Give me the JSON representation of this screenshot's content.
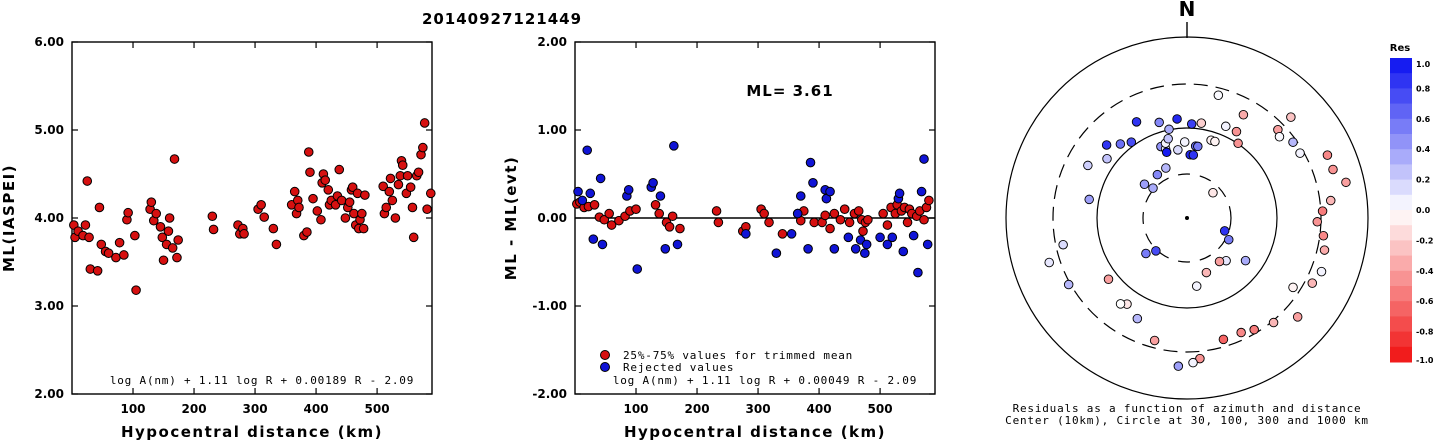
{
  "title": "20140927121449",
  "colors": {
    "red": "#d61010",
    "blue": "#1014d6",
    "res_pos": "#0a10f0",
    "res_neg": "#f01010"
  },
  "chart_data": [
    {
      "type": "scatter",
      "xlabel": "Hypocentral distance (km)",
      "ylabel": "ML(IASPEI)",
      "xlim": [
        0,
        590
      ],
      "ylim": [
        2.0,
        6.0
      ],
      "xticks": [
        "100",
        "200",
        "300",
        "400",
        "500"
      ],
      "yticks": [
        "2.00",
        "3.00",
        "4.00",
        "5.00",
        "6.00"
      ],
      "formula": "log A(nm) + 1.11 log R + 0.00189 R - 2.09",
      "points": [
        [
          3,
          3.92
        ],
        [
          5,
          3.78
        ],
        [
          10,
          3.85
        ],
        [
          18,
          3.8
        ],
        [
          22,
          3.92
        ],
        [
          25,
          4.42
        ],
        [
          28,
          3.78
        ],
        [
          30,
          3.42
        ],
        [
          42,
          3.4
        ],
        [
          45,
          4.12
        ],
        [
          48,
          3.7
        ],
        [
          55,
          3.62
        ],
        [
          60,
          3.6
        ],
        [
          72,
          3.55
        ],
        [
          78,
          3.72
        ],
        [
          85,
          3.58
        ],
        [
          90,
          3.98
        ],
        [
          92,
          4.06
        ],
        [
          103,
          3.8
        ],
        [
          105,
          3.18
        ],
        [
          128,
          4.1
        ],
        [
          130,
          4.18
        ],
        [
          134,
          3.97
        ],
        [
          138,
          4.05
        ],
        [
          145,
          3.9
        ],
        [
          148,
          3.78
        ],
        [
          150,
          3.52
        ],
        [
          155,
          3.7
        ],
        [
          158,
          3.85
        ],
        [
          160,
          4.0
        ],
        [
          165,
          3.66
        ],
        [
          168,
          4.67
        ],
        [
          172,
          3.55
        ],
        [
          174,
          3.75
        ],
        [
          230,
          4.02
        ],
        [
          232,
          3.87
        ],
        [
          272,
          3.92
        ],
        [
          275,
          3.82
        ],
        [
          280,
          3.88
        ],
        [
          282,
          3.82
        ],
        [
          305,
          4.1
        ],
        [
          310,
          4.15
        ],
        [
          315,
          4.01
        ],
        [
          330,
          3.88
        ],
        [
          335,
          3.7
        ],
        [
          360,
          4.15
        ],
        [
          365,
          4.3
        ],
        [
          368,
          4.05
        ],
        [
          370,
          4.2
        ],
        [
          372,
          4.12
        ],
        [
          380,
          3.8
        ],
        [
          385,
          3.84
        ],
        [
          388,
          4.75
        ],
        [
          390,
          4.52
        ],
        [
          395,
          4.22
        ],
        [
          402,
          4.08
        ],
        [
          408,
          3.98
        ],
        [
          410,
          4.4
        ],
        [
          412,
          4.5
        ],
        [
          415,
          4.43
        ],
        [
          420,
          4.32
        ],
        [
          422,
          4.15
        ],
        [
          425,
          4.2
        ],
        [
          432,
          4.15
        ],
        [
          435,
          4.25
        ],
        [
          438,
          4.55
        ],
        [
          442,
          4.2
        ],
        [
          448,
          4.0
        ],
        [
          452,
          4.12
        ],
        [
          455,
          4.18
        ],
        [
          458,
          4.32
        ],
        [
          460,
          4.35
        ],
        [
          462,
          4.05
        ],
        [
          465,
          3.92
        ],
        [
          468,
          4.28
        ],
        [
          470,
          3.88
        ],
        [
          472,
          3.98
        ],
        [
          475,
          4.05
        ],
        [
          478,
          3.88
        ],
        [
          480,
          4.26
        ],
        [
          510,
          4.36
        ],
        [
          512,
          4.05
        ],
        [
          515,
          4.12
        ],
        [
          520,
          4.3
        ],
        [
          522,
          4.45
        ],
        [
          525,
          4.2
        ],
        [
          530,
          4.0
        ],
        [
          535,
          4.38
        ],
        [
          538,
          4.48
        ],
        [
          540,
          4.65
        ],
        [
          542,
          4.6
        ],
        [
          548,
          4.28
        ],
        [
          550,
          4.48
        ],
        [
          555,
          4.35
        ],
        [
          558,
          4.12
        ],
        [
          560,
          3.78
        ],
        [
          565,
          4.48
        ],
        [
          568,
          4.52
        ],
        [
          572,
          4.72
        ],
        [
          575,
          4.8
        ],
        [
          578,
          5.08
        ],
        [
          582,
          4.1
        ],
        [
          588,
          4.28
        ]
      ]
    },
    {
      "type": "scatter",
      "xlabel": "Hypocentral distance (km)",
      "ylabel": "ML - ML(evt)",
      "xlim": [
        0,
        590
      ],
      "ylim": [
        -2.0,
        2.0
      ],
      "xticks": [
        "100",
        "200",
        "300",
        "400",
        "500"
      ],
      "yticks": [
        "-2.00",
        "-1.00",
        "0.00",
        "1.00",
        "2.00"
      ],
      "annotation": "ML= 3.61",
      "formula": "log A(nm) + 1.11 log R + 0.00049 R - 2.09",
      "legend": [
        {
          "label": "25%-75% values for trimmed mean",
          "color": "red"
        },
        {
          "label": "Rejected values",
          "color": "blue"
        }
      ],
      "series": [
        {
          "color": "red",
          "points": [
            [
              3,
              0.16
            ],
            [
              8,
              0.18
            ],
            [
              15,
              0.12
            ],
            [
              22,
              0.13
            ],
            [
              32,
              0.15
            ],
            [
              40,
              0.01
            ],
            [
              48,
              -0.02
            ],
            [
              56,
              0.05
            ],
            [
              60,
              -0.08
            ],
            [
              72,
              -0.03
            ],
            [
              82,
              0.02
            ],
            [
              90,
              0.08
            ],
            [
              100,
              0.1
            ],
            [
              132,
              0.15
            ],
            [
              138,
              0.05
            ],
            [
              150,
              -0.05
            ],
            [
              155,
              -0.1
            ],
            [
              160,
              0.02
            ],
            [
              172,
              -0.12
            ],
            [
              232,
              0.08
            ],
            [
              235,
              -0.05
            ],
            [
              275,
              -0.15
            ],
            [
              280,
              -0.1
            ],
            [
              305,
              0.1
            ],
            [
              310,
              0.05
            ],
            [
              318,
              -0.05
            ],
            [
              340,
              -0.18
            ],
            [
              365,
              0.05
            ],
            [
              370,
              -0.03
            ],
            [
              375,
              0.08
            ],
            [
              392,
              -0.05
            ],
            [
              405,
              -0.05
            ],
            [
              410,
              0.03
            ],
            [
              418,
              -0.12
            ],
            [
              425,
              0.05
            ],
            [
              435,
              -0.02
            ],
            [
              442,
              0.1
            ],
            [
              450,
              -0.05
            ],
            [
              458,
              0.05
            ],
            [
              465,
              0.08
            ],
            [
              470,
              -0.02
            ],
            [
              472,
              -0.15
            ],
            [
              476,
              -0.05
            ],
            [
              480,
              -0.02
            ],
            [
              505,
              0.05
            ],
            [
              512,
              -0.08
            ],
            [
              518,
              0.12
            ],
            [
              525,
              0.05
            ],
            [
              528,
              0.15
            ],
            [
              535,
              0.08
            ],
            [
              540,
              0.12
            ],
            [
              545,
              -0.05
            ],
            [
              548,
              0.1
            ],
            [
              552,
              0.05
            ],
            [
              560,
              0.02
            ],
            [
              565,
              0.08
            ],
            [
              572,
              -0.02
            ],
            [
              576,
              0.12
            ],
            [
              580,
              0.2
            ]
          ]
        },
        {
          "color": "blue",
          "points": [
            [
              5,
              0.3
            ],
            [
              12,
              0.2
            ],
            [
              20,
              0.77
            ],
            [
              25,
              0.28
            ],
            [
              30,
              -0.24
            ],
            [
              42,
              0.45
            ],
            [
              45,
              -0.3
            ],
            [
              85,
              0.25
            ],
            [
              88,
              0.32
            ],
            [
              102,
              -0.58
            ],
            [
              125,
              0.35
            ],
            [
              128,
              0.4
            ],
            [
              140,
              0.25
            ],
            [
              148,
              -0.35
            ],
            [
              162,
              0.82
            ],
            [
              168,
              -0.3
            ],
            [
              280,
              -0.18
            ],
            [
              330,
              -0.4
            ],
            [
              355,
              -0.18
            ],
            [
              365,
              0.05
            ],
            [
              370,
              0.25
            ],
            [
              382,
              -0.35
            ],
            [
              386,
              0.63
            ],
            [
              390,
              0.4
            ],
            [
              410,
              0.32
            ],
            [
              412,
              0.22
            ],
            [
              418,
              0.3
            ],
            [
              425,
              -0.35
            ],
            [
              448,
              -0.22
            ],
            [
              460,
              -0.35
            ],
            [
              468,
              -0.25
            ],
            [
              475,
              -0.4
            ],
            [
              478,
              -0.3
            ],
            [
              500,
              -0.22
            ],
            [
              512,
              -0.3
            ],
            [
              520,
              -0.22
            ],
            [
              530,
              0.22
            ],
            [
              532,
              0.28
            ],
            [
              538,
              -0.38
            ],
            [
              555,
              -0.2
            ],
            [
              562,
              -0.62
            ],
            [
              568,
              0.3
            ],
            [
              572,
              0.67
            ],
            [
              578,
              -0.3
            ]
          ]
        }
      ],
      "zero_line": 0
    },
    {
      "type": "polar_scatter",
      "north_label": "N",
      "caption_line1": "Residuals as a function of azimuth and distance",
      "caption_line2": "Center (10km), Circle at 30, 100, 300 and 1000 km",
      "colorbar": {
        "title": "Res",
        "ticks": [
          "1.0",
          "0.8",
          "0.6",
          "0.4",
          "0.2",
          "0.0",
          "-0.2",
          "-0.4",
          "-0.6",
          "-0.8",
          "-1.0"
        ]
      },
      "stations": [
        [
          -0.35,
          0.42,
          0.45
        ],
        [
          -0.3,
          0.4,
          0.1
        ],
        [
          -0.03,
          0.42,
          0.05
        ],
        [
          0.05,
          0.35,
          0.9
        ],
        [
          0.1,
          0.35,
          0.85
        ],
        [
          0.12,
          0.4,
          0.6
        ],
        [
          0.15,
          0.4,
          0.55
        ],
        [
          -0.6,
          0.29,
          0.5
        ],
        [
          -0.85,
          0.25,
          0.35
        ],
        [
          -0.9,
          0.3,
          0.4
        ],
        [
          -0.4,
          0.3,
          0.3
        ],
        [
          -0.3,
          0.38,
          0.95
        ],
        [
          -0.28,
          0.43,
          0.05
        ],
        [
          -0.2,
          0.5,
          0.35
        ],
        [
          -0.1,
          0.55,
          0.9
        ],
        [
          0.05,
          0.52,
          0.8
        ],
        [
          0.15,
          0.53,
          -0.2
        ],
        [
          0.25,
          0.7,
          0.02
        ],
        [
          0.4,
          0.55,
          0.05
        ],
        [
          0.3,
          0.45,
          -0.05
        ],
        [
          0.35,
          0.45,
          -0.05
        ],
        [
          0.5,
          0.65,
          -0.35
        ],
        [
          0.52,
          0.55,
          -0.45
        ],
        [
          0.6,
          0.5,
          -0.45
        ],
        [
          0.8,
          0.7,
          -0.4
        ],
        [
          0.8,
          0.8,
          -0.25
        ],
        [
          0.85,
          0.68,
          0.02
        ],
        [
          0.95,
          0.72,
          0.3
        ],
        [
          1.05,
          0.72,
          0.05
        ],
        [
          1.15,
          0.85,
          -0.5
        ],
        [
          1.25,
          0.85,
          -0.45
        ],
        [
          1.35,
          0.9,
          -0.4
        ],
        [
          1.45,
          0.8,
          -0.3
        ],
        [
          1.52,
          0.75,
          -0.55
        ],
        [
          1.6,
          0.72,
          -0.45
        ],
        [
          1.7,
          0.76,
          -0.5
        ],
        [
          1.8,
          0.78,
          -0.35
        ],
        [
          1.95,
          0.8,
          0.05
        ],
        [
          2.05,
          0.78,
          -0.3
        ],
        [
          2.15,
          0.7,
          -0.05
        ],
        [
          2.3,
          0.82,
          -0.4
        ],
        [
          2.45,
          0.75,
          -0.3
        ],
        [
          2.6,
          0.72,
          -0.55
        ],
        [
          2.7,
          0.7,
          -0.5
        ],
        [
          2.85,
          0.7,
          -0.65
        ],
        [
          3.05,
          0.78,
          -0.45
        ],
        [
          3.1,
          0.8,
          0.05
        ],
        [
          3.2,
          0.82,
          0.4
        ],
        [
          3.4,
          0.7,
          -0.4
        ],
        [
          3.6,
          0.62,
          0.3
        ],
        [
          3.75,
          0.58,
          -0.1
        ],
        [
          3.8,
          0.6,
          0.0
        ],
        [
          4.05,
          0.55,
          -0.4
        ],
        [
          4.2,
          0.75,
          0.3
        ],
        [
          4.4,
          0.8,
          0.1
        ],
        [
          4.5,
          0.7,
          0.15
        ],
        [
          4.9,
          0.55,
          0.4
        ],
        [
          5.2,
          0.62,
          0.2
        ],
        [
          5.35,
          0.55,
          0.25
        ],
        [
          5.45,
          0.6,
          0.85
        ],
        [
          5.55,
          0.55,
          0.6
        ],
        [
          5.65,
          0.52,
          0.75
        ],
        [
          5.8,
          0.6,
          0.85
        ],
        [
          6.0,
          0.55,
          0.5
        ],
        [
          6.15,
          0.38,
          0.15
        ],
        [
          6.05,
          0.45,
          0.25
        ],
        [
          0.8,
          0.2,
          -0.1
        ],
        [
          2.2,
          0.4,
          0.35
        ],
        [
          2.4,
          0.32,
          0.1
        ],
        [
          2.5,
          0.3,
          -0.4
        ],
        [
          2.8,
          0.32,
          -0.3
        ],
        [
          3.0,
          0.38,
          0.05
        ],
        [
          4.0,
          0.3,
          0.55
        ],
        [
          3.9,
          0.25,
          0.75
        ],
        [
          1.9,
          0.22,
          0.85
        ],
        [
          2.05,
          0.26,
          0.55
        ]
      ]
    }
  ]
}
